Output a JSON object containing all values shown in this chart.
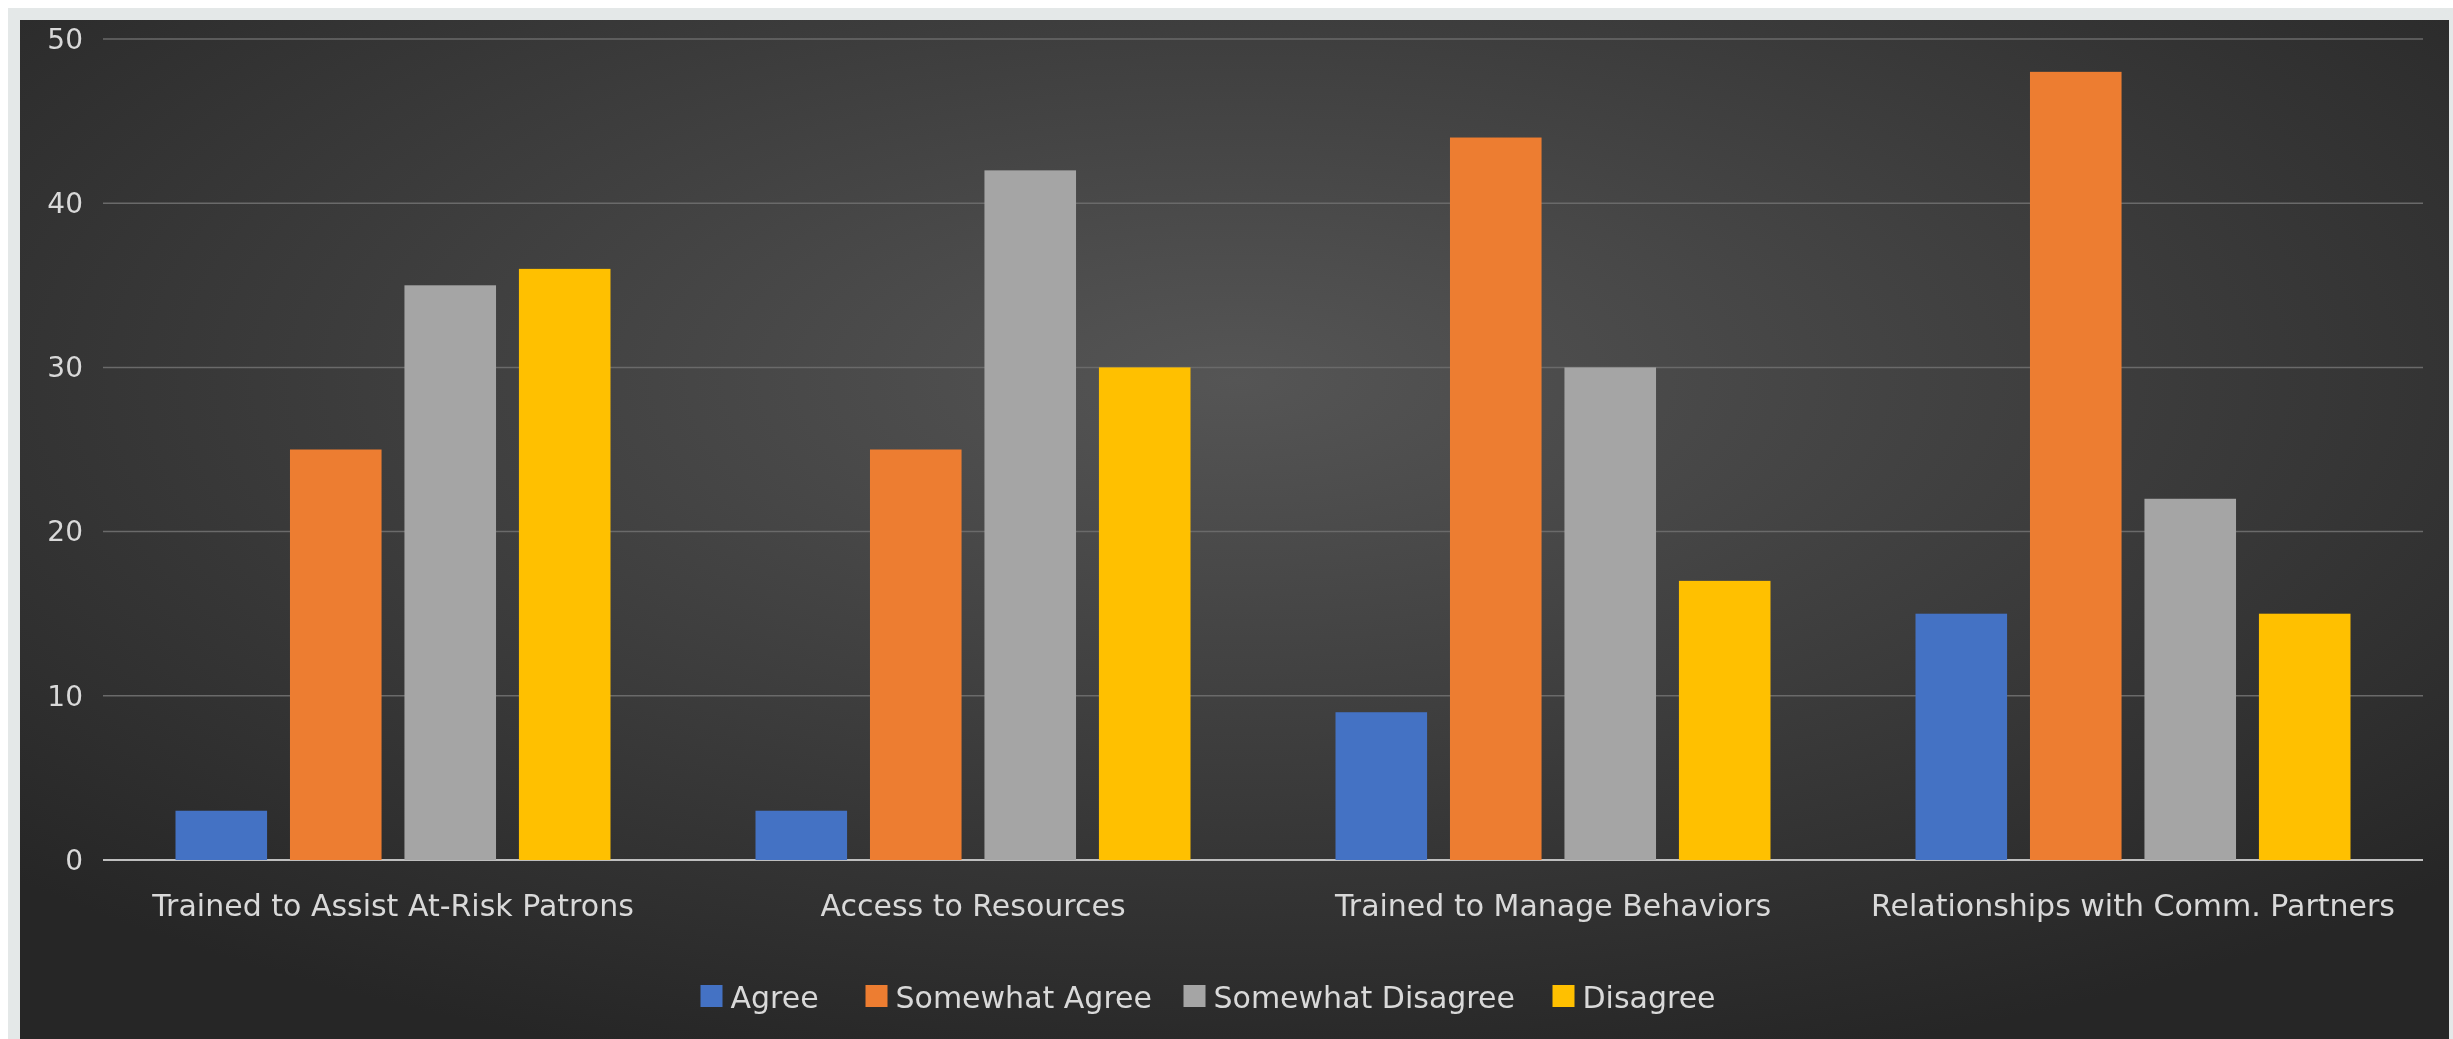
{
  "chart_data": {
    "type": "bar",
    "categories": [
      "Trained to Assist At-Risk Patrons",
      "Access to Resources",
      "Trained to Manage Behaviors",
      "Relationships with Comm. Partners"
    ],
    "series": [
      {
        "name": "Agree",
        "color": "#4472c4",
        "values": [
          3,
          3,
          9,
          15
        ]
      },
      {
        "name": "Somewhat Agree",
        "color": "#ed7d31",
        "values": [
          25,
          25,
          44,
          48
        ]
      },
      {
        "name": "Somewhat Disagree",
        "color": "#a5a5a5",
        "values": [
          35,
          42,
          30,
          22
        ]
      },
      {
        "name": "Disagree",
        "color": "#ffc000",
        "values": [
          36,
          30,
          17,
          15
        ]
      }
    ],
    "ylim": [
      0,
      50
    ],
    "yticks": [
      0,
      10,
      20,
      30,
      40,
      50
    ],
    "grid": "y",
    "legend": "bottom"
  }
}
